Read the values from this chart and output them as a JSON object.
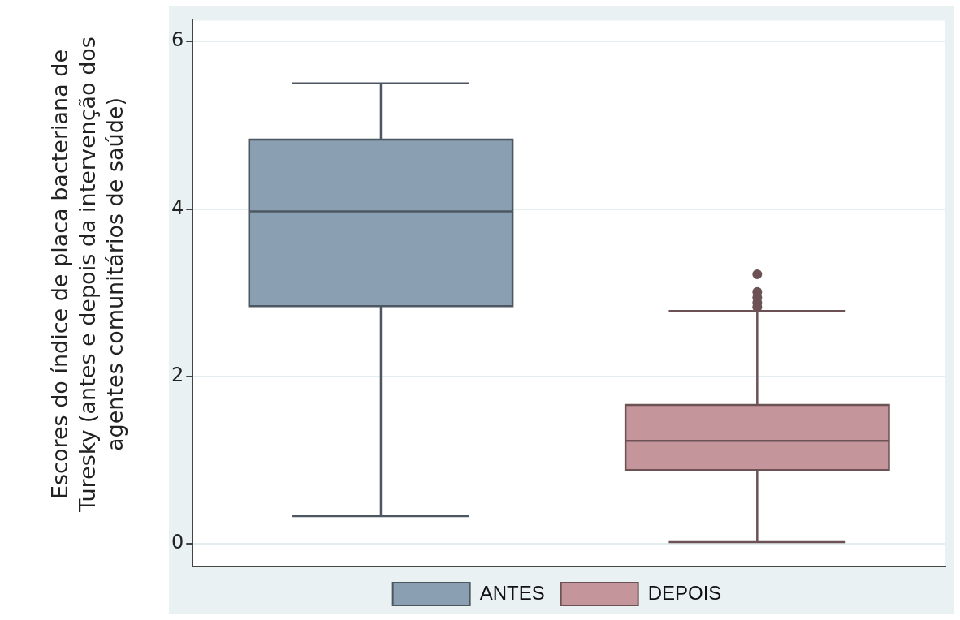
{
  "chart_data": {
    "type": "box",
    "ylabel": "Escores do índice de placa bacteriana de Turesky (antes e depois da intervenção dos agentes comunitários de saúde)",
    "categories": [
      null,
      null
    ],
    "series": [
      {
        "name": "ANTES",
        "color": "#8a9fb2",
        "boxes": [
          {
            "low": 0.33,
            "q1": 2.84,
            "median": 3.97,
            "q3": 4.83,
            "high": 5.5
          },
          null
        ]
      },
      {
        "name": "DEPOIS",
        "color": "#c4959a",
        "boxes": [
          null,
          {
            "low": 0.02,
            "q1": 0.88,
            "median": 1.23,
            "q3": 1.66,
            "high": 2.78,
            "outliers": [
              3.22,
              3.01,
              2.94,
              2.88,
              2.83
            ]
          }
        ]
      }
    ],
    "ylim": [
      -0.27,
      6.25
    ],
    "yticks": [
      0,
      2,
      4,
      6
    ],
    "grid": "y",
    "legend": "bottom",
    "tick_labels": "y"
  }
}
